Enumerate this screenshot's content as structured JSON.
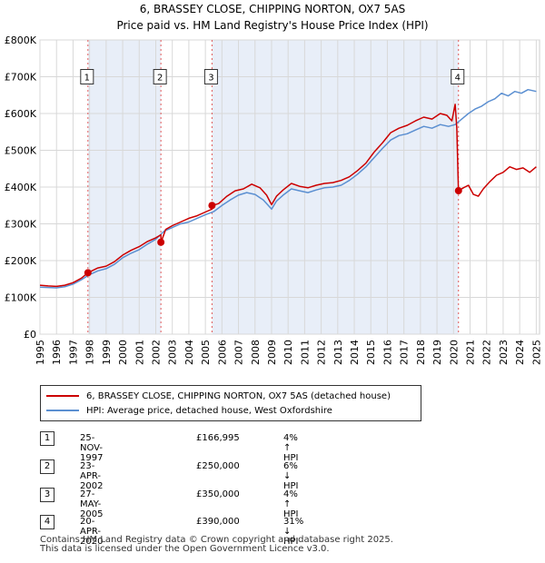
{
  "chart_data": {
    "type": "line",
    "title": "6, BRASSEY CLOSE, CHIPPING NORTON, OX7 5AS",
    "subtitle": "Price paid vs. HM Land Registry's House Price Index (HPI)",
    "xlabel": "",
    "ylabel": "",
    "xlim": [
      1995,
      2025.2
    ],
    "ylim": [
      0,
      800000
    ],
    "x_ticks": [
      "1995",
      "1996",
      "1997",
      "1998",
      "1999",
      "2000",
      "2001",
      "2002",
      "2003",
      "2004",
      "2005",
      "2006",
      "2007",
      "2008",
      "2009",
      "2010",
      "2011",
      "2012",
      "2013",
      "2014",
      "2015",
      "2016",
      "2017",
      "2018",
      "2019",
      "2020",
      "2021",
      "2022",
      "2023",
      "2024",
      "2025"
    ],
    "y_ticks": [
      {
        "value": 0,
        "label": "£0"
      },
      {
        "value": 100000,
        "label": "£100K"
      },
      {
        "value": 200000,
        "label": "£200K"
      },
      {
        "value": 300000,
        "label": "£300K"
      },
      {
        "value": 400000,
        "label": "£400K"
      },
      {
        "value": 500000,
        "label": "£500K"
      },
      {
        "value": 600000,
        "label": "£600K"
      },
      {
        "value": 700000,
        "label": "£700K"
      },
      {
        "value": 800000,
        "label": "£800K"
      }
    ],
    "grid": true,
    "series": [
      {
        "name": "6, BRASSEY CLOSE, CHIPPING NORTON, OX7 5AS (detached house)",
        "color": "#cc0000",
        "x": [
          1995.0,
          1995.5,
          1996.0,
          1996.5,
          1997.0,
          1997.5,
          1997.9,
          1998.5,
          1999.0,
          1999.5,
          2000.0,
          2000.5,
          2001.0,
          2001.5,
          2002.0,
          2002.31,
          2002.32,
          2002.6,
          2003.0,
          2003.5,
          2004.0,
          2004.5,
          2005.0,
          2005.4,
          2005.41,
          2005.8,
          2006.3,
          2006.8,
          2007.3,
          2007.8,
          2008.3,
          2008.7,
          2009.0,
          2009.3,
          2009.7,
          2010.2,
          2010.7,
          2011.2,
          2011.7,
          2012.2,
          2012.7,
          2013.2,
          2013.7,
          2014.2,
          2014.7,
          2015.2,
          2015.7,
          2016.2,
          2016.7,
          2017.2,
          2017.7,
          2018.2,
          2018.7,
          2019.2,
          2019.6,
          2019.9,
          2020.1,
          2020.2,
          2020.29,
          2020.3,
          2020.6,
          2020.9,
          2021.2,
          2021.5,
          2021.8,
          2022.2,
          2022.6,
          2023.0,
          2023.4,
          2023.8,
          2024.2,
          2024.6,
          2025.0
        ],
        "values": [
          133000,
          131000,
          130000,
          133000,
          140000,
          152000,
          166995,
          180000,
          185000,
          197000,
          215000,
          228000,
          238000,
          252000,
          262000,
          270000,
          250000,
          285000,
          295000,
          305000,
          315000,
          322000,
          332000,
          340000,
          350000,
          355000,
          375000,
          390000,
          395000,
          408000,
          398000,
          378000,
          352000,
          375000,
          392000,
          410000,
          402000,
          398000,
          405000,
          410000,
          412000,
          418000,
          428000,
          445000,
          465000,
          495000,
          520000,
          548000,
          560000,
          568000,
          580000,
          590000,
          585000,
          600000,
          595000,
          580000,
          625000,
          560000,
          400000,
          390000,
          398000,
          405000,
          380000,
          375000,
          395000,
          415000,
          432000,
          440000,
          455000,
          448000,
          452000,
          440000,
          455000
        ],
        "marker_label": "6, BRASSEY CLOSE, CHIPPING NORTON, OX7 5AS (detached house)"
      },
      {
        "name": "HPI: Average price, detached house, West Oxfordshire",
        "color": "#5b8fd1",
        "x": [
          1995.0,
          1995.5,
          1996.0,
          1996.5,
          1997.0,
          1997.5,
          1998.0,
          1998.5,
          1999.0,
          1999.5,
          2000.0,
          2000.5,
          2001.0,
          2001.5,
          2002.0,
          2002.5,
          2003.0,
          2003.5,
          2004.0,
          2004.5,
          2005.0,
          2005.5,
          2006.0,
          2006.5,
          2007.0,
          2007.5,
          2008.0,
          2008.5,
          2009.0,
          2009.3,
          2009.7,
          2010.2,
          2010.7,
          2011.2,
          2011.7,
          2012.2,
          2012.7,
          2013.2,
          2013.7,
          2014.2,
          2014.7,
          2015.2,
          2015.7,
          2016.2,
          2016.7,
          2017.2,
          2017.7,
          2018.2,
          2018.7,
          2019.2,
          2019.7,
          2020.1,
          2020.5,
          2020.9,
          2021.3,
          2021.7,
          2022.1,
          2022.5,
          2022.9,
          2023.3,
          2023.7,
          2024.1,
          2024.5,
          2025.0
        ],
        "values": [
          128000,
          127000,
          126000,
          129000,
          136000,
          148000,
          162000,
          172000,
          178000,
          190000,
          208000,
          220000,
          230000,
          245000,
          258000,
          280000,
          290000,
          300000,
          305000,
          315000,
          325000,
          333000,
          350000,
          365000,
          378000,
          385000,
          380000,
          365000,
          340000,
          362000,
          378000,
          395000,
          390000,
          385000,
          392000,
          398000,
          400000,
          405000,
          418000,
          435000,
          455000,
          480000,
          505000,
          528000,
          540000,
          545000,
          555000,
          565000,
          560000,
          570000,
          565000,
          570000,
          585000,
          600000,
          612000,
          620000,
          632000,
          640000,
          655000,
          648000,
          660000,
          655000,
          665000,
          660000
        ]
      }
    ],
    "transactions": [
      {
        "num": "1",
        "date": "25-NOV-1997",
        "price": "£166,995",
        "hpi": "4% ↑ HPI",
        "x": 1997.9,
        "value": 166995
      },
      {
        "num": "2",
        "date": "23-APR-2002",
        "price": "£250,000",
        "hpi": "6% ↓ HPI",
        "x": 2002.31,
        "value": 250000
      },
      {
        "num": "3",
        "date": "27-MAY-2005",
        "price": "£350,000",
        "hpi": "4% ↑ HPI",
        "x": 2005.4,
        "value": 350000
      },
      {
        "num": "4",
        "date": "20-APR-2020",
        "price": "£390,000",
        "hpi": "31% ↓ HPI",
        "x": 2020.3,
        "value": 390000
      }
    ],
    "legend_position": "below"
  },
  "legend": {
    "property": "6, BRASSEY CLOSE, CHIPPING NORTON, OX7 5AS (detached house)",
    "hpi": "HPI: Average price, detached house, West Oxfordshire"
  },
  "footer": {
    "line1": "Contains HM Land Registry data © Crown copyright and database right 2025.",
    "line2": "This data is licensed under the Open Government Licence v3.0."
  },
  "colors": {
    "property_line": "#cc0000",
    "hpi_line": "#5b8fd1",
    "shade": "#e8eef8",
    "grid": "#d8d8d8",
    "vline": "#e05a5a"
  }
}
